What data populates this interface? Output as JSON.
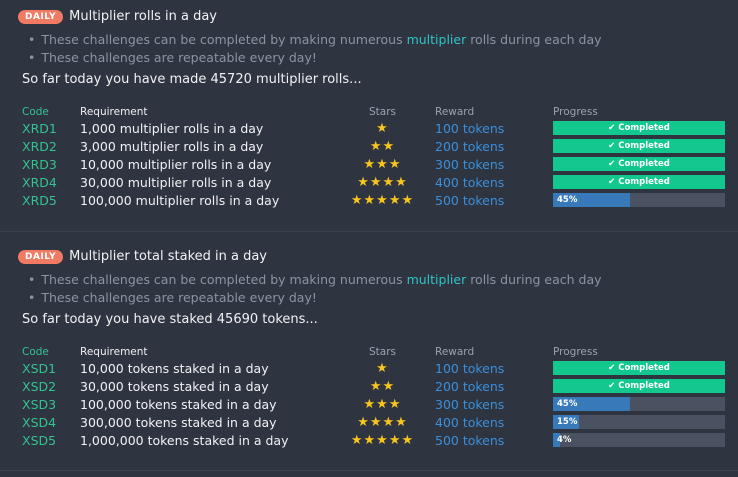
{
  "sections": [
    {
      "badge": "DAILY",
      "title": "Multiplier rolls in a day",
      "bullet1_pre": "These challenges can be completed by making numerous ",
      "bullet1_hl": "multiplier",
      "bullet1_post": " rolls during each day",
      "bullet2": "These challenges are repeatable every day!",
      "summary": "So far today you have made 45720 multiplier rolls...",
      "headers": {
        "code": "Code",
        "requirement": "Requirement",
        "stars": "Stars",
        "reward": "Reward",
        "progress": "Progress"
      },
      "rows": [
        {
          "code": "XRD1",
          "requirement": "1,000 multiplier rolls in a day",
          "stars": "★",
          "reward": "100 tokens",
          "status": "✔ Completed",
          "progress": 1.0
        },
        {
          "code": "XRD2",
          "requirement": "3,000 multiplier rolls in a day",
          "stars": "★★",
          "reward": "200 tokens",
          "status": "✔ Completed",
          "progress": 1.0
        },
        {
          "code": "XRD3",
          "requirement": "10,000 multiplier rolls in a day",
          "stars": "★★★",
          "reward": "300 tokens",
          "status": "✔ Completed",
          "progress": 1.0
        },
        {
          "code": "XRD4",
          "requirement": "30,000 multiplier rolls in a day",
          "stars": "★★★★",
          "reward": "400 tokens",
          "status": "✔ Completed",
          "progress": 1.0
        },
        {
          "code": "XRD5",
          "requirement": "100,000 multiplier rolls in a day",
          "stars": "★★★★★",
          "reward": "500 tokens",
          "status": "45%",
          "progress": 0.45
        }
      ]
    },
    {
      "badge": "DAILY",
      "title": "Multiplier total staked in a day",
      "bullet1_pre": "These challenges can be completed by making numerous ",
      "bullet1_hl": "multiplier",
      "bullet1_post": " rolls during each day",
      "bullet2": "These challenges are repeatable every day!",
      "summary": "So far today you have staked 45690 tokens...",
      "headers": {
        "code": "Code",
        "requirement": "Requirement",
        "stars": "Stars",
        "reward": "Reward",
        "progress": "Progress"
      },
      "rows": [
        {
          "code": "XSD1",
          "requirement": "10,000 tokens staked in a day",
          "stars": "★",
          "reward": "100 tokens",
          "status": "✔ Completed",
          "progress": 1.0
        },
        {
          "code": "XSD2",
          "requirement": "30,000 tokens staked in a day",
          "stars": "★★",
          "reward": "200 tokens",
          "status": "✔ Completed",
          "progress": 1.0
        },
        {
          "code": "XSD3",
          "requirement": "100,000 tokens staked in a day",
          "stars": "★★★",
          "reward": "300 tokens",
          "status": "45%",
          "progress": 0.45
        },
        {
          "code": "XSD4",
          "requirement": "300,000 tokens staked in a day",
          "stars": "★★★★",
          "reward": "400 tokens",
          "status": "15%",
          "progress": 0.15
        },
        {
          "code": "XSD5",
          "requirement": "1,000,000 tokens staked in a day",
          "stars": "★★★★★",
          "reward": "500 tokens",
          "status": "4%",
          "progress": 0.04
        }
      ]
    }
  ],
  "colors": {
    "background": "#2f3441",
    "badge": "#f07a63",
    "code": "#34c38f",
    "reward": "#3b8fd9",
    "star": "#f7c51d",
    "completed": "#12c88f",
    "partial": "#3879ba",
    "track": "#4a5160",
    "highlight": "#2ec4c7"
  }
}
